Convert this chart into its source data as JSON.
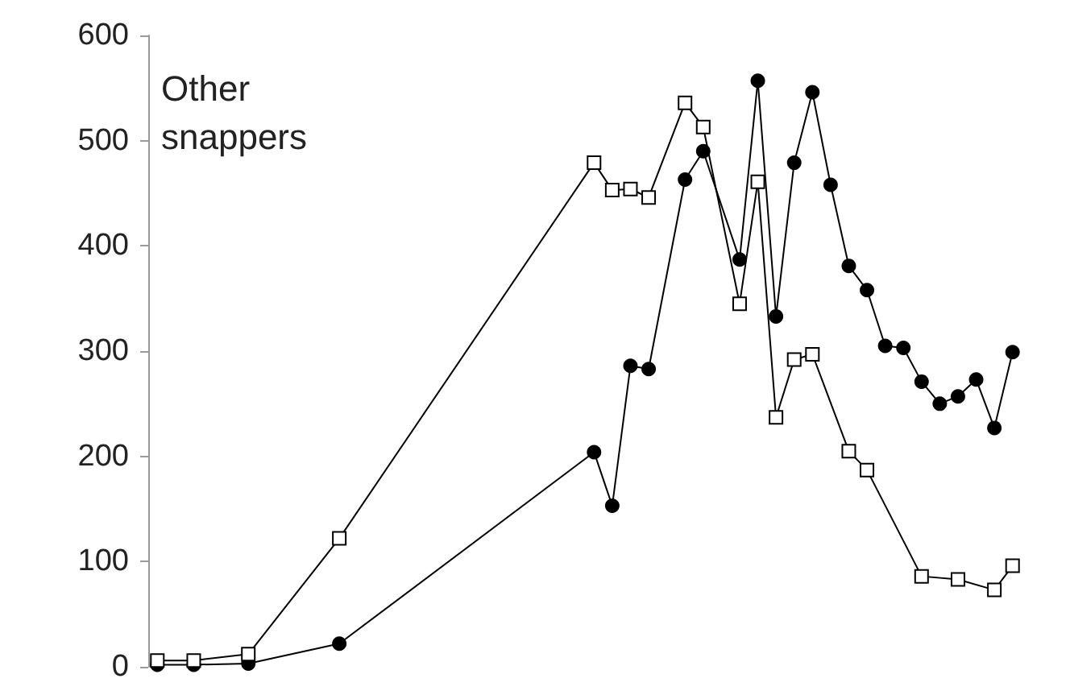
{
  "chart_data": {
    "type": "line",
    "annotations": [
      "Other\nsnappers"
    ],
    "categories": [
      null,
      null,
      null,
      null,
      null,
      null,
      null,
      null,
      null,
      null,
      null,
      null,
      null,
      null,
      null,
      null,
      null,
      null,
      null,
      null,
      null,
      null,
      null,
      null,
      null,
      null,
      null,
      null,
      null,
      null,
      null,
      null,
      null,
      null,
      null,
      null,
      null,
      null,
      null,
      null,
      null,
      null,
      null,
      null,
      null,
      null,
      null,
      null
    ],
    "series": [
      {
        "color": "#000000",
        "marker": "circle",
        "values": [
          2,
          null,
          2,
          null,
          null,
          3,
          null,
          null,
          null,
          null,
          22,
          null,
          null,
          null,
          null,
          null,
          null,
          null,
          null,
          null,
          null,
          null,
          null,
          null,
          204,
          153,
          286,
          283,
          null,
          463,
          490,
          null,
          387,
          557,
          333,
          479,
          546,
          458,
          381,
          358,
          305,
          303,
          271,
          250,
          257,
          273,
          227,
          299
        ]
      },
      {
        "color": "#000000",
        "marker": "square",
        "values": [
          6,
          null,
          6,
          null,
          null,
          12,
          null,
          null,
          null,
          null,
          122,
          null,
          null,
          null,
          null,
          null,
          null,
          null,
          null,
          null,
          null,
          null,
          null,
          null,
          479,
          453,
          454,
          446,
          null,
          536,
          513,
          null,
          345,
          461,
          237,
          292,
          297,
          null,
          205,
          187,
          null,
          null,
          86,
          null,
          83,
          null,
          73,
          96
        ]
      }
    ],
    "ylim": [
      0,
      600
    ],
    "yticks": [
      0,
      100,
      200,
      300,
      400,
      500,
      600
    ],
    "tick_labels": "y",
    "grid": false,
    "line_style": "solid"
  }
}
